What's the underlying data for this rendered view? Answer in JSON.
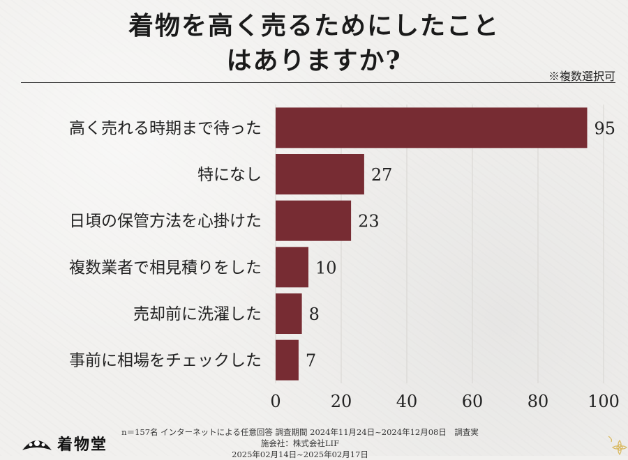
{
  "header": {
    "title_line1": "着物を高く売るためにしたこと",
    "title_line2": "はありますか?",
    "note": "※複数選択可"
  },
  "chart_data": {
    "type": "bar",
    "orientation": "horizontal",
    "categories": [
      "高く売れる時期まで待った",
      "特になし",
      "日頃の保管方法を心掛けた",
      "複数業者で相見積りをした",
      "売却前に洗濯した",
      "事前に相場をチェックした"
    ],
    "values": [
      95,
      27,
      23,
      10,
      8,
      7
    ],
    "xlim": [
      0,
      100
    ],
    "xticks": [
      0,
      20,
      40,
      60,
      80,
      100
    ],
    "title": "着物を高く売るためにしたことはありますか?",
    "xlabel": "",
    "ylabel": "",
    "bar_color": "#772c33",
    "grid": true
  },
  "footer": {
    "logo_text": "着物堂",
    "line1": "n＝157名 インターネットによる任意回答 調査期間 2024年11月24日~2024年12月08日　調査実施会社：株式会社LIF",
    "line2": "2025年02月14日~2025年02月17日"
  }
}
